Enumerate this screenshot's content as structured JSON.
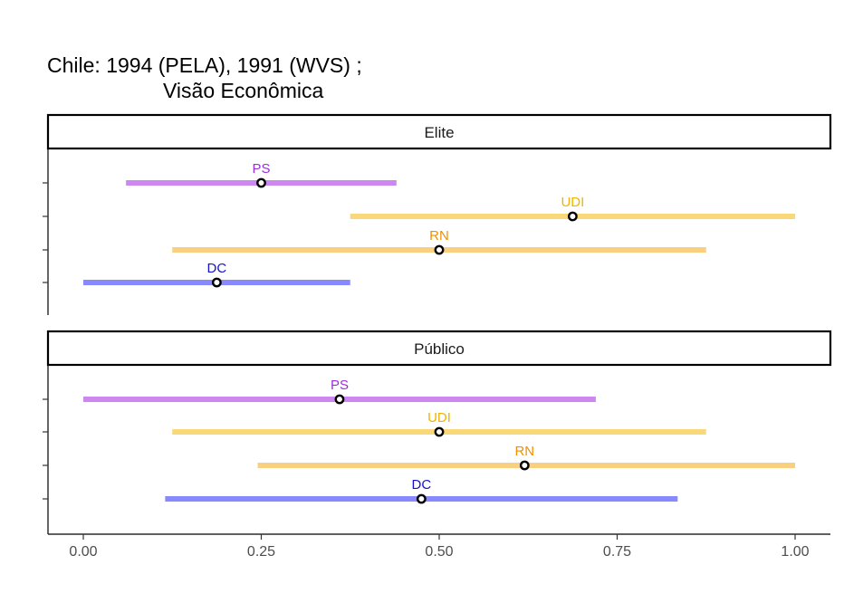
{
  "chart_data": {
    "type": "interval",
    "title_line1": "Chile: 1994 (PELA), 1991 (WVS) ;",
    "title_line2": "Visão Econômica",
    "x_ticks": [
      "0.00",
      "0.25",
      "0.50",
      "0.75",
      "1.00"
    ],
    "x_tick_values": [
      0,
      0.25,
      0.5,
      0.75,
      1.0
    ],
    "xlim": [
      -0.05,
      1.05
    ],
    "colors": {
      "PS": "#9b30d9",
      "UDI": "#f0b400",
      "RN": "#f09000",
      "DC": "#1414c8",
      "PS_bar": "#cc88f0",
      "UDI_bar": "#f8d878",
      "RN_bar": "#f8d080",
      "DC_bar": "#8888ff"
    },
    "panels": [
      {
        "label": "Elite",
        "rows": [
          {
            "party": "PS",
            "low": 0.06,
            "mid": 0.25,
            "high": 0.44
          },
          {
            "party": "UDI",
            "low": 0.375,
            "mid": 0.6875,
            "high": 1.0
          },
          {
            "party": "RN",
            "low": 0.125,
            "mid": 0.5,
            "high": 0.875
          },
          {
            "party": "DC",
            "low": 0.0,
            "mid": 0.1875,
            "high": 0.375
          }
        ]
      },
      {
        "label": "Público",
        "rows": [
          {
            "party": "PS",
            "low": 0.0,
            "mid": 0.36,
            "high": 0.72
          },
          {
            "party": "UDI",
            "low": 0.125,
            "mid": 0.5,
            "high": 0.875
          },
          {
            "party": "RN",
            "low": 0.245,
            "mid": 0.62,
            "high": 1.0
          },
          {
            "party": "DC",
            "low": 0.115,
            "mid": 0.475,
            "high": 0.835
          }
        ]
      }
    ]
  }
}
